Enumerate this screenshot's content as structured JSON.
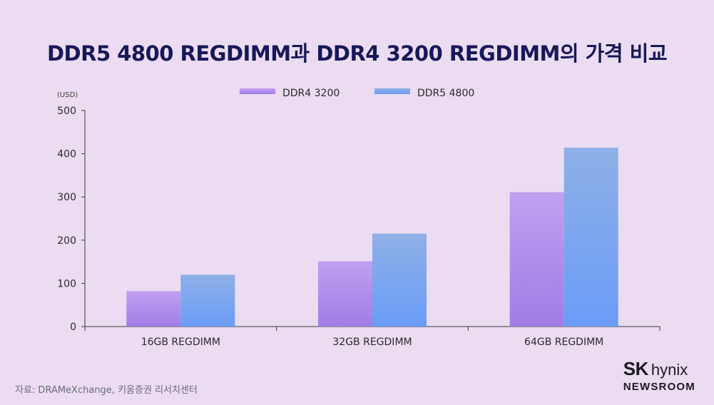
{
  "title": "DDR5 4800 REGDIMM과 DDR4 3200 REGDIMM의 가격 비교",
  "source": "자료: DRAMeXchange,  키움증권 리서치센터",
  "brand": {
    "name_bold": "SK",
    "name_light": "hynix",
    "subtitle": "NEWSROOM"
  },
  "colors": {
    "background": "#ebdcf1",
    "title": "#17185a",
    "ddr4_top": "#c19ff0",
    "ddr4_bottom": "#9f7de6",
    "ddr5_top": "#8eb0e6",
    "ddr5_bottom": "#6a9cf8",
    "axis": "#3a3a3a"
  },
  "chart_data": {
    "type": "bar",
    "unit_label": "(USD)",
    "categories": [
      "16GB REGDIMM",
      "32GB REGDIMM",
      "64GB REGDIMM"
    ],
    "series": [
      {
        "name": "DDR4 3200",
        "values": [
          82,
          151,
          311
        ]
      },
      {
        "name": "DDR5 4800",
        "values": [
          120,
          215,
          414
        ]
      }
    ],
    "ylim": [
      0,
      500
    ],
    "yticks": [
      0,
      100,
      200,
      300,
      400,
      500
    ],
    "grid": false,
    "legend_position": "top-center"
  }
}
